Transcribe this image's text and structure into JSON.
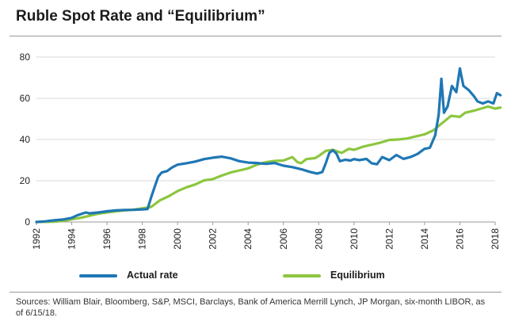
{
  "title": "Ruble Spot Rate and “Equilibrium”",
  "source_note": "Sources: William Blair, Bloomberg, S&P, MSCI, Barclays, Bank of America Merrill Lynch, JP Morgan, six-month LIBOR, as of 6/15/18.",
  "colors": {
    "actual": "#1f77b4",
    "equilibrium": "#8cc63f",
    "grid": "#d9d9d9"
  },
  "chart_data": {
    "type": "line",
    "title": "Ruble Spot Rate and “Equilibrium”",
    "xlabel": "",
    "ylabel": "",
    "xlim": [
      1992,
      2018
    ],
    "ylim": [
      0,
      80
    ],
    "x_ticks": [
      1992,
      1994,
      1996,
      1998,
      2000,
      2002,
      2004,
      2006,
      2008,
      2010,
      2012,
      2014,
      2016,
      2018
    ],
    "y_ticks": [
      0,
      20,
      40,
      60,
      80
    ],
    "grid": "horizontal",
    "legend": "bottom",
    "series": [
      {
        "name": "Actual rate",
        "color": "#1f77b4",
        "points": [
          [
            1992.0,
            0
          ],
          [
            1992.5,
            0.3
          ],
          [
            1993.0,
            0.8
          ],
          [
            1993.5,
            1.2
          ],
          [
            1994.0,
            2.0
          ],
          [
            1994.3,
            3.2
          ],
          [
            1994.8,
            4.6
          ],
          [
            1995.0,
            4.2
          ],
          [
            1995.5,
            4.6
          ],
          [
            1996.0,
            5.2
          ],
          [
            1996.5,
            5.6
          ],
          [
            1997.0,
            5.8
          ],
          [
            1997.5,
            5.9
          ],
          [
            1998.0,
            6.1
          ],
          [
            1998.3,
            6.3
          ],
          [
            1998.5,
            12
          ],
          [
            1998.7,
            17
          ],
          [
            1998.9,
            22
          ],
          [
            1999.1,
            24
          ],
          [
            1999.4,
            24.7
          ],
          [
            1999.7,
            26.5
          ],
          [
            2000.0,
            27.8
          ],
          [
            2000.5,
            28.5
          ],
          [
            2001.0,
            29.3
          ],
          [
            2001.5,
            30.5
          ],
          [
            2002.0,
            31.2
          ],
          [
            2002.5,
            31.7
          ],
          [
            2003.0,
            30.9
          ],
          [
            2003.5,
            29.5
          ],
          [
            2004.0,
            28.8
          ],
          [
            2004.5,
            28.6
          ],
          [
            2005.0,
            28.2
          ],
          [
            2005.5,
            28.6
          ],
          [
            2006.0,
            27.3
          ],
          [
            2006.5,
            26.6
          ],
          [
            2007.0,
            25.6
          ],
          [
            2007.5,
            24.3
          ],
          [
            2007.9,
            23.5
          ],
          [
            2008.2,
            24.2
          ],
          [
            2008.4,
            28.5
          ],
          [
            2008.6,
            33.5
          ],
          [
            2008.8,
            34.8
          ],
          [
            2009.0,
            33.2
          ],
          [
            2009.2,
            29.5
          ],
          [
            2009.5,
            30.2
          ],
          [
            2009.8,
            29.8
          ],
          [
            2010.0,
            30.5
          ],
          [
            2010.3,
            30.0
          ],
          [
            2010.7,
            30.6
          ],
          [
            2011.0,
            28.5
          ],
          [
            2011.3,
            28.0
          ],
          [
            2011.6,
            31.5
          ],
          [
            2012.0,
            30.0
          ],
          [
            2012.4,
            32.5
          ],
          [
            2012.8,
            30.6
          ],
          [
            2013.2,
            31.5
          ],
          [
            2013.6,
            33.0
          ],
          [
            2014.0,
            35.5
          ],
          [
            2014.3,
            36.0
          ],
          [
            2014.6,
            42.0
          ],
          [
            2014.8,
            52.0
          ],
          [
            2014.95,
            69.5
          ],
          [
            2015.1,
            53.0
          ],
          [
            2015.3,
            56.0
          ],
          [
            2015.55,
            66.0
          ],
          [
            2015.8,
            63.0
          ],
          [
            2016.0,
            74.5
          ],
          [
            2016.2,
            66.0
          ],
          [
            2016.5,
            64.0
          ],
          [
            2016.8,
            61.0
          ],
          [
            2017.0,
            58.5
          ],
          [
            2017.3,
            57.5
          ],
          [
            2017.6,
            58.5
          ],
          [
            2017.9,
            57.5
          ],
          [
            2018.1,
            62.5
          ],
          [
            2018.3,
            61.5
          ]
        ]
      },
      {
        "name": "Equilibrium",
        "color": "#8cc63f",
        "points": [
          [
            1992.0,
            0
          ],
          [
            1993.0,
            0.1
          ],
          [
            1993.6,
            0.6
          ],
          [
            1994.0,
            1.3
          ],
          [
            1994.5,
            2.0
          ],
          [
            1995.0,
            3.0
          ],
          [
            1995.5,
            4.0
          ],
          [
            1996.0,
            4.6
          ],
          [
            1996.5,
            5.2
          ],
          [
            1997.0,
            5.6
          ],
          [
            1997.5,
            6.0
          ],
          [
            1998.0,
            6.6
          ],
          [
            1998.5,
            7.3
          ],
          [
            1999.0,
            10.5
          ],
          [
            1999.5,
            12.5
          ],
          [
            2000.0,
            15.0
          ],
          [
            2000.5,
            16.8
          ],
          [
            2001.0,
            18.2
          ],
          [
            2001.5,
            20.2
          ],
          [
            2002.0,
            20.8
          ],
          [
            2002.5,
            22.5
          ],
          [
            2003.0,
            24.0
          ],
          [
            2003.5,
            25.0
          ],
          [
            2004.0,
            26.0
          ],
          [
            2004.5,
            27.8
          ],
          [
            2005.0,
            29.0
          ],
          [
            2005.5,
            29.6
          ],
          [
            2006.0,
            29.8
          ],
          [
            2006.5,
            31.5
          ],
          [
            2006.8,
            29.0
          ],
          [
            2007.0,
            28.5
          ],
          [
            2007.3,
            30.5
          ],
          [
            2007.8,
            31.0
          ],
          [
            2008.0,
            32.0
          ],
          [
            2008.4,
            34.5
          ],
          [
            2008.8,
            35.0
          ],
          [
            2009.3,
            33.5
          ],
          [
            2009.7,
            35.5
          ],
          [
            2010.0,
            35.0
          ],
          [
            2010.5,
            36.5
          ],
          [
            2011.0,
            37.5
          ],
          [
            2011.5,
            38.5
          ],
          [
            2012.0,
            39.8
          ],
          [
            2012.5,
            40.0
          ],
          [
            2013.0,
            40.5
          ],
          [
            2013.5,
            41.5
          ],
          [
            2014.0,
            42.5
          ],
          [
            2014.5,
            44.5
          ],
          [
            2015.0,
            48.0
          ],
          [
            2015.5,
            51.5
          ],
          [
            2016.0,
            51.0
          ],
          [
            2016.3,
            53.0
          ],
          [
            2016.8,
            54.0
          ],
          [
            2017.2,
            55.0
          ],
          [
            2017.6,
            56.0
          ],
          [
            2018.0,
            55.0
          ],
          [
            2018.3,
            55.5
          ]
        ]
      }
    ]
  }
}
